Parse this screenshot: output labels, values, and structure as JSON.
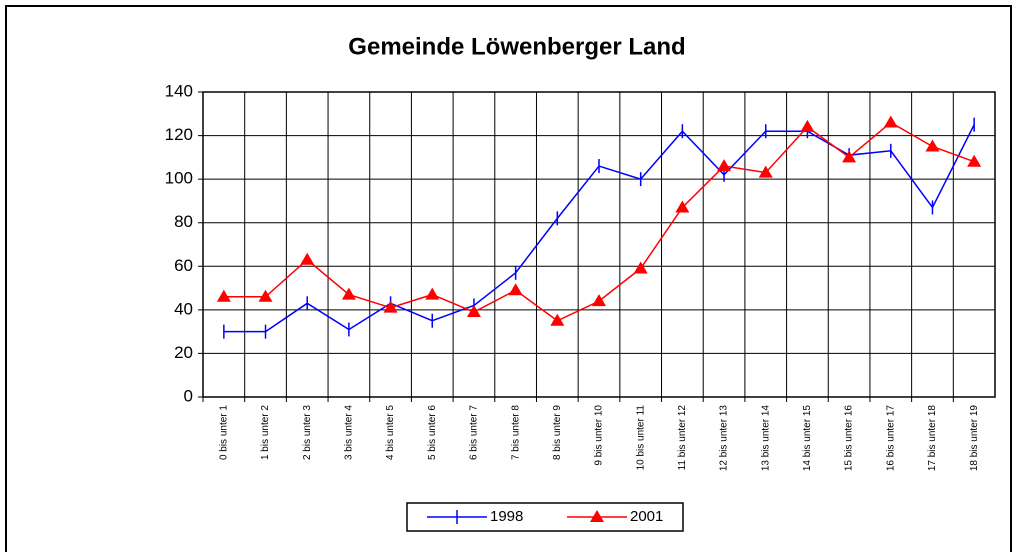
{
  "chart_data": {
    "type": "line",
    "title": "Gemeinde Löwenberger Land",
    "categories": [
      "0 bis unter 1",
      "1 bis unter 2",
      "2 bis unter 3",
      "3 bis unter 4",
      "4 bis unter 5",
      "5 bis unter 6",
      "6 bis unter 7",
      "7 bis unter 8",
      "8 bis unter 9",
      "9 bis unter 10",
      "10 bis unter 11",
      "11 bis unter 12",
      "12 bis unter 13",
      "13 bis unter 14",
      "14 bis unter 15",
      "15 bis unter 16",
      "16 bis unter 17",
      "17 bis unter 18",
      "18 bis unter 19"
    ],
    "series": [
      {
        "name": "1998",
        "color": "#0000ff",
        "values": [
          30,
          30,
          43,
          31,
          43,
          35,
          42,
          57,
          82,
          106,
          100,
          122,
          102,
          122,
          122,
          111,
          113,
          87,
          125
        ]
      },
      {
        "name": "2001",
        "color": "#ff0000",
        "values": [
          46,
          46,
          63,
          47,
          41,
          47,
          39,
          49,
          35,
          44,
          59,
          87,
          106,
          103,
          124,
          110,
          126,
          115,
          108
        ]
      }
    ],
    "ylim": [
      0,
      140
    ],
    "yticks": [
      0,
      20,
      40,
      60,
      80,
      100,
      120,
      140
    ],
    "grid": true,
    "legend": "bottom"
  }
}
